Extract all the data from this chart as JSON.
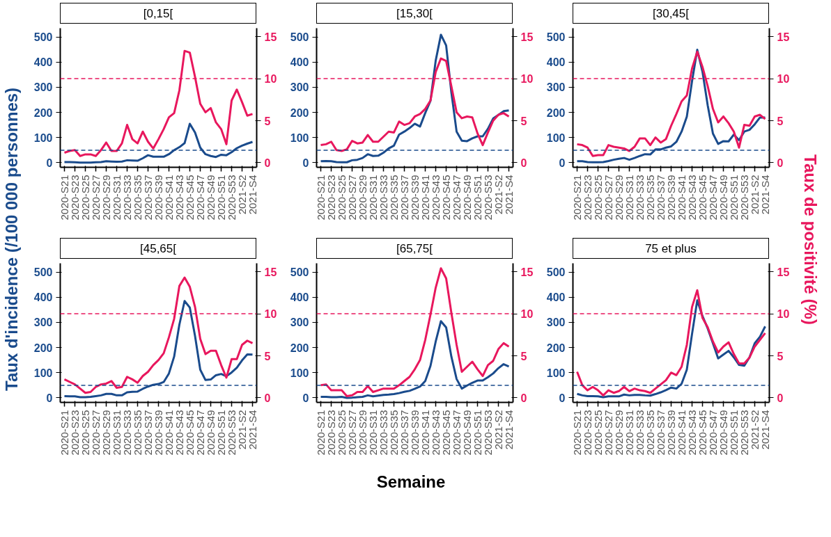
{
  "chart_data": [
    {
      "type": "line",
      "title": "[0,15[",
      "ylabel": "Taux d'incidence (/100 000 personnes)",
      "y2label": "Taux de positivité (%)",
      "xlabel": "Semaine",
      "categories": [
        "2020-S21",
        null,
        "2020-S23",
        null,
        "2020-S25",
        null,
        "2020-S27",
        null,
        "2020-S29",
        null,
        "2020-S31",
        null,
        "2020-S33",
        null,
        "2020-S35",
        null,
        "2020-S37",
        null,
        "2020-S39",
        null,
        "2020-S41",
        null,
        "2020-S43",
        null,
        "2020-S45",
        null,
        "2020-S47",
        null,
        "2020-S49",
        null,
        "2020-S51",
        null,
        "2020-S53",
        null,
        "2021-S2",
        null,
        "2021-S4"
      ],
      "ylim": [
        -18,
        535
      ],
      "yticks": [
        0,
        100,
        200,
        300,
        400,
        500
      ],
      "y2lim": [
        -0.54,
        16
      ],
      "y2ticks": [
        0,
        5,
        10,
        15
      ],
      "ref_lines": [
        {
          "axis": "y",
          "value": 50,
          "color": "#1a4b8c",
          "line_style": "dashed"
        },
        {
          "axis": "y2",
          "value": 10,
          "color": "#e8175d",
          "line_style": "dashed"
        }
      ],
      "series": [
        {
          "color": "#1a4b8c",
          "axis": "y",
          "values": [
            3,
            3,
            2,
            1,
            1,
            1,
            2,
            3,
            6,
            5,
            4,
            5,
            10,
            9,
            8,
            18,
            30,
            24,
            24,
            24,
            34,
            50,
            62,
            78,
            155,
            120,
            60,
            34,
            27,
            23,
            32,
            30,
            42,
            58,
            68,
            76,
            83
          ]
        },
        {
          "color": "#e8175d",
          "axis": "y2",
          "values": [
            1.2,
            1.4,
            1.5,
            0.8,
            1.0,
            1.0,
            0.8,
            1.5,
            2.4,
            1.4,
            1.4,
            2.3,
            4.5,
            2.8,
            2.3,
            3.7,
            2.5,
            1.7,
            2.8,
            4.0,
            5.4,
            5.9,
            8.6,
            13.3,
            13.1,
            10.2,
            7.0,
            6.0,
            6.5,
            4.8,
            4.0,
            2.2,
            7.4,
            8.7,
            7.2,
            5.6,
            5.8
          ]
        }
      ]
    },
    {
      "type": "line",
      "title": "[15,30[",
      "categories": [
        "2020-S21",
        null,
        "2020-S23",
        null,
        "2020-S25",
        null,
        "2020-S27",
        null,
        "2020-S29",
        null,
        "2020-S31",
        null,
        "2020-S33",
        null,
        "2020-S35",
        null,
        "2020-S37",
        null,
        "2020-S39",
        null,
        "2020-S41",
        null,
        "2020-S43",
        null,
        "2020-S45",
        null,
        "2020-S47",
        null,
        "2020-S49",
        null,
        "2020-S51",
        null,
        "2020-S53",
        null,
        "2021-S2",
        null,
        "2021-S4"
      ],
      "ylim": [
        -18,
        535
      ],
      "yticks": [
        0,
        100,
        200,
        300,
        400,
        500
      ],
      "y2lim": [
        -0.54,
        16
      ],
      "y2ticks": [
        0,
        5,
        10,
        15
      ],
      "ref_lines": [
        {
          "axis": "y",
          "value": 50,
          "color": "#1a4b8c",
          "line_style": "dashed"
        },
        {
          "axis": "y2",
          "value": 10,
          "color": "#e8175d",
          "line_style": "dashed"
        }
      ],
      "series": [
        {
          "color": "#1a4b8c",
          "axis": "y",
          "values": [
            6,
            7,
            6,
            3,
            2,
            2,
            10,
            12,
            19,
            34,
            27,
            28,
            40,
            57,
            68,
            112,
            124,
            138,
            155,
            144,
            198,
            246,
            406,
            509,
            466,
            280,
            124,
            88,
            86,
            97,
            105,
            105,
            135,
            176,
            190,
            205,
            208
          ]
        },
        {
          "color": "#e8175d",
          "axis": "y2",
          "values": [
            2.1,
            2.2,
            2.5,
            1.5,
            1.4,
            1.6,
            2.6,
            2.3,
            2.4,
            3.3,
            2.5,
            2.5,
            3.1,
            3.7,
            3.6,
            4.9,
            4.5,
            4.7,
            5.5,
            5.8,
            6.4,
            7.4,
            10.8,
            12.4,
            12.1,
            9.1,
            6.0,
            5.3,
            5.5,
            5.4,
            3.5,
            2.1,
            3.6,
            5.0,
            5.7,
            5.9,
            5.5
          ]
        }
      ]
    },
    {
      "type": "line",
      "title": "[30,45[",
      "categories": [
        "2020-S21",
        null,
        "2020-S23",
        null,
        "2020-S25",
        null,
        "2020-S27",
        null,
        "2020-S29",
        null,
        "2020-S31",
        null,
        "2020-S33",
        null,
        "2020-S35",
        null,
        "2020-S37",
        null,
        "2020-S39",
        null,
        "2020-S41",
        null,
        "2020-S43",
        null,
        "2020-S45",
        null,
        "2020-S47",
        null,
        "2020-S49",
        null,
        "2020-S51",
        null,
        "2020-S53",
        null,
        "2021-S2",
        null,
        "2021-S4"
      ],
      "ylim": [
        -18,
        535
      ],
      "yticks": [
        0,
        100,
        200,
        300,
        400,
        500
      ],
      "y2lim": [
        -0.54,
        16
      ],
      "y2ticks": [
        0,
        5,
        10,
        15
      ],
      "ref_lines": [
        {
          "axis": "y",
          "value": 50,
          "color": "#1a4b8c",
          "line_style": "dashed"
        },
        {
          "axis": "y2",
          "value": 10,
          "color": "#e8175d",
          "line_style": "dashed"
        }
      ],
      "series": [
        {
          "color": "#1a4b8c",
          "axis": "y",
          "values": [
            6,
            6,
            3,
            2,
            2,
            3,
            7,
            12,
            16,
            19,
            12,
            19,
            27,
            34,
            33,
            53,
            53,
            60,
            65,
            83,
            124,
            183,
            324,
            449,
            362,
            228,
            116,
            75,
            86,
            85,
            112,
            90,
            124,
            131,
            153,
            180,
            180
          ]
        },
        {
          "color": "#e8175d",
          "axis": "y2",
          "values": [
            2.2,
            2.1,
            1.8,
            0.8,
            0.9,
            0.9,
            2.1,
            1.9,
            1.8,
            1.7,
            1.4,
            1.9,
            2.9,
            2.9,
            2.1,
            3.0,
            2.4,
            2.8,
            4.4,
            5.8,
            7.3,
            8.0,
            11.2,
            13.2,
            11.4,
            9.1,
            6.4,
            4.8,
            5.5,
            4.7,
            3.7,
            1.8,
            4.5,
            4.4,
            5.5,
            5.7,
            5.2
          ]
        }
      ]
    },
    {
      "type": "line",
      "title": "[45,65[",
      "categories": [
        "2020-S21",
        null,
        "2020-S23",
        null,
        "2020-S25",
        null,
        "2020-S27",
        null,
        "2020-S29",
        null,
        "2020-S31",
        null,
        "2020-S33",
        null,
        "2020-S35",
        null,
        "2020-S37",
        null,
        "2020-S39",
        null,
        "2020-S41",
        null,
        "2020-S43",
        null,
        "2020-S45",
        null,
        "2020-S47",
        null,
        "2020-S49",
        null,
        "2020-S51",
        null,
        "2020-S53",
        null,
        "2021-S2",
        null,
        "2021-S4"
      ],
      "ylim": [
        -18,
        535
      ],
      "yticks": [
        0,
        100,
        200,
        300,
        400,
        500
      ],
      "y2lim": [
        -0.54,
        16
      ],
      "y2ticks": [
        0,
        5,
        10,
        15
      ],
      "ref_lines": [
        {
          "axis": "y",
          "value": 50,
          "color": "#1a4b8c",
          "line_style": "dashed"
        },
        {
          "axis": "y2",
          "value": 10,
          "color": "#e8175d",
          "line_style": "dashed"
        }
      ],
      "series": [
        {
          "color": "#1a4b8c",
          "axis": "y",
          "values": [
            7,
            6,
            6,
            3,
            3,
            4,
            7,
            10,
            16,
            16,
            10,
            10,
            22,
            24,
            25,
            36,
            45,
            52,
            55,
            63,
            97,
            164,
            291,
            385,
            359,
            246,
            112,
            71,
            73,
            90,
            95,
            86,
            101,
            120,
            149,
            173,
            172
          ]
        },
        {
          "color": "#e8175d",
          "axis": "y2",
          "values": [
            2.2,
            1.9,
            1.6,
            1.1,
            0.6,
            0.7,
            1.3,
            1.6,
            1.7,
            2.0,
            1.2,
            1.3,
            2.5,
            2.2,
            1.8,
            2.6,
            3.1,
            3.9,
            4.5,
            5.3,
            7.2,
            9.4,
            13.3,
            14.3,
            13.2,
            10.8,
            7.0,
            5.2,
            5.6,
            5.6,
            3.9,
            2.4,
            4.6,
            4.6,
            6.3,
            6.8,
            6.5
          ]
        }
      ]
    },
    {
      "type": "line",
      "title": "[65,75[",
      "categories": [
        "2020-S21",
        null,
        "2020-S23",
        null,
        "2020-S25",
        null,
        "2020-S27",
        null,
        "2020-S29",
        null,
        "2020-S31",
        null,
        "2020-S33",
        null,
        "2020-S35",
        null,
        "2020-S37",
        null,
        "2020-S39",
        null,
        "2020-S41",
        null,
        "2020-S43",
        null,
        "2020-S45",
        null,
        "2020-S47",
        null,
        "2020-S49",
        null,
        "2020-S51",
        null,
        "2020-S53",
        null,
        "2021-S2",
        null,
        "2021-S4"
      ],
      "ylim": [
        -18,
        535
      ],
      "yticks": [
        0,
        100,
        200,
        300,
        400,
        500
      ],
      "y2lim": [
        -0.54,
        16
      ],
      "y2ticks": [
        0,
        5,
        10,
        15
      ],
      "ref_lines": [
        {
          "axis": "y",
          "value": 50,
          "color": "#1a4b8c",
          "line_style": "dashed"
        },
        {
          "axis": "y2",
          "value": 10,
          "color": "#e8175d",
          "line_style": "dashed"
        }
      ],
      "series": [
        {
          "color": "#1a4b8c",
          "axis": "y",
          "values": [
            4,
            4,
            3,
            3,
            4,
            0,
            1,
            3,
            4,
            10,
            6,
            9,
            12,
            13,
            15,
            19,
            24,
            28,
            36,
            45,
            67,
            127,
            224,
            305,
            280,
            164,
            75,
            37,
            49,
            60,
            69,
            69,
            82,
            97,
            118,
            134,
            125
          ]
        },
        {
          "color": "#e8175d",
          "axis": "y2",
          "values": [
            1.5,
            1.6,
            0.9,
            0.9,
            0.9,
            0.2,
            0.3,
            0.7,
            0.7,
            1.4,
            0.7,
            0.9,
            1.1,
            1.1,
            1.1,
            1.5,
            2.0,
            2.5,
            3.4,
            4.5,
            6.9,
            9.9,
            13.1,
            15.4,
            14.2,
            10.1,
            6.3,
            3.1,
            3.7,
            4.3,
            3.4,
            2.6,
            3.9,
            4.4,
            5.8,
            6.5,
            6.1
          ]
        }
      ]
    },
    {
      "type": "line",
      "title": "75 et plus",
      "categories": [
        "2020-S21",
        null,
        "2020-S23",
        null,
        "2020-S25",
        null,
        "2020-S27",
        null,
        "2020-S29",
        null,
        "2020-S31",
        null,
        "2020-S33",
        null,
        "2020-S35",
        null,
        "2020-S37",
        null,
        "2020-S39",
        null,
        "2020-S41",
        null,
        "2020-S43",
        null,
        "2020-S45",
        null,
        "2020-S47",
        null,
        "2020-S49",
        null,
        "2020-S51",
        null,
        "2020-S53",
        null,
        "2021-S2",
        null,
        "2021-S4"
      ],
      "ylim": [
        -18,
        535
      ],
      "yticks": [
        0,
        100,
        200,
        300,
        400,
        500
      ],
      "y2lim": [
        -0.54,
        16
      ],
      "y2ticks": [
        0,
        5,
        10,
        15
      ],
      "ref_lines": [
        {
          "axis": "y",
          "value": 50,
          "color": "#1a4b8c",
          "line_style": "dashed"
        },
        {
          "axis": "y2",
          "value": 10,
          "color": "#e8175d",
          "line_style": "dashed"
        }
      ],
      "series": [
        {
          "color": "#1a4b8c",
          "axis": "y",
          "values": [
            16,
            10,
            7,
            7,
            6,
            3,
            6,
            6,
            6,
            13,
            10,
            12,
            12,
            10,
            9,
            15,
            22,
            31,
            41,
            37,
            56,
            112,
            254,
            388,
            325,
            276,
            217,
            157,
            172,
            187,
            161,
            131,
            128,
            161,
            217,
            243,
            284
          ]
        },
        {
          "color": "#e8175d",
          "axis": "y2",
          "values": [
            3.1,
            1.5,
            0.9,
            1.3,
            0.9,
            0.3,
            0.9,
            0.6,
            0.8,
            1.3,
            0.8,
            1.1,
            0.9,
            0.8,
            0.6,
            1.1,
            1.6,
            2.1,
            3.0,
            2.7,
            3.7,
            6.3,
            10.8,
            12.8,
            9.5,
            8.4,
            6.7,
            5.4,
            6.1,
            6.6,
            5.2,
            4.1,
            4.1,
            4.8,
            6.1,
            6.9,
            7.7
          ]
        }
      ]
    }
  ]
}
